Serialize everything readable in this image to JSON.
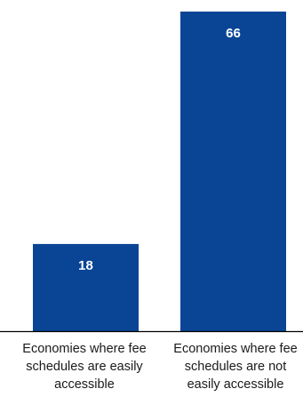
{
  "chart_data": {
    "type": "bar",
    "categories": [
      "Economies where fee schedules are easily accessible",
      "Economies where fee schedules are not easily accessible"
    ],
    "values": [
      18,
      66
    ],
    "value_labels": [
      "18",
      "66"
    ],
    "title": "",
    "xlabel": "",
    "ylabel": "",
    "ylim": [
      0,
      66
    ],
    "grid": false,
    "legend": "none",
    "bar_color": "#0a4595",
    "value_label_color": "#ffffff",
    "axis_color": "#000000"
  }
}
